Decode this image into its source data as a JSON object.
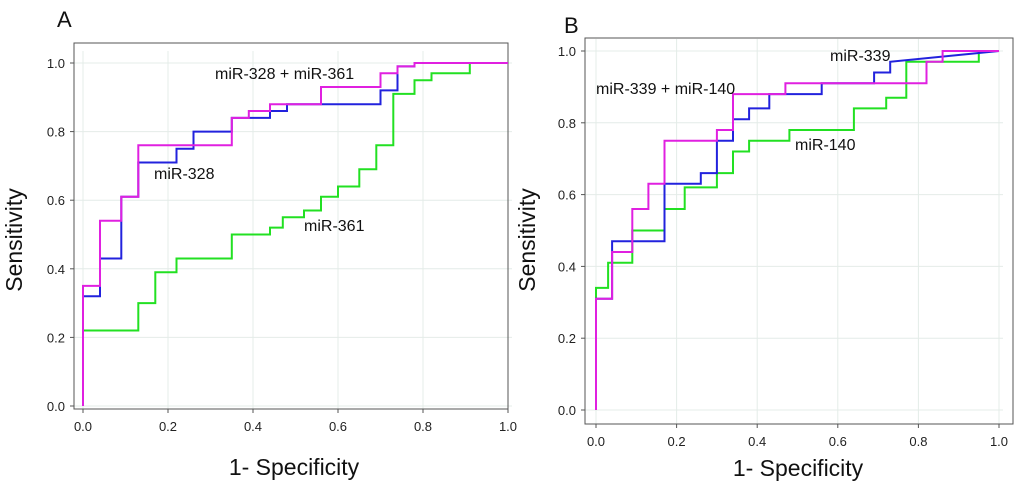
{
  "chart_data": [
    {
      "type": "line",
      "panel_label": "A",
      "xlabel": "1- Specificity",
      "ylabel": "Sensitivity",
      "xlim": [
        0,
        1
      ],
      "ylim": [
        0,
        1
      ],
      "grid": true,
      "x_ticks": [
        "0.0",
        "0.2",
        "0.4",
        "0.6",
        "0.8",
        "1.0"
      ],
      "y_ticks": [
        "0.0",
        "0.2",
        "0.4",
        "0.6",
        "0.8",
        "1.0"
      ],
      "series": [
        {
          "name": "miR-361",
          "color": "#22e022",
          "x": [
            0,
            0,
            0.13,
            0.13,
            0.17,
            0.17,
            0.22,
            0.22,
            0.35,
            0.35,
            0.44,
            0.44,
            0.47,
            0.47,
            0.52,
            0.52,
            0.56,
            0.56,
            0.6,
            0.6,
            0.65,
            0.65,
            0.69,
            0.69,
            0.73,
            0.73,
            0.78,
            0.78,
            0.82,
            0.82,
            0.91,
            0.91,
            1.0
          ],
          "y": [
            0,
            0.22,
            0.22,
            0.3,
            0.3,
            0.39,
            0.39,
            0.43,
            0.43,
            0.5,
            0.5,
            0.52,
            0.52,
            0.55,
            0.55,
            0.57,
            0.57,
            0.61,
            0.61,
            0.64,
            0.64,
            0.69,
            0.69,
            0.76,
            0.76,
            0.91,
            0.91,
            0.95,
            0.95,
            0.97,
            0.97,
            1.0,
            1.0
          ]
        },
        {
          "name": "miR-328",
          "color": "#2222dd",
          "x": [
            0,
            0,
            0.04,
            0.04,
            0.09,
            0.09,
            0.13,
            0.13,
            0.22,
            0.22,
            0.26,
            0.26,
            0.35,
            0.35,
            0.44,
            0.44,
            0.48,
            0.48,
            0.7,
            0.7,
            0.74,
            0.74,
            0.78,
            0.78,
            1.0
          ],
          "y": [
            0,
            0.32,
            0.32,
            0.43,
            0.43,
            0.61,
            0.61,
            0.71,
            0.71,
            0.75,
            0.75,
            0.8,
            0.8,
            0.84,
            0.84,
            0.86,
            0.86,
            0.88,
            0.88,
            0.92,
            0.92,
            0.99,
            0.99,
            1.0,
            1.0
          ]
        },
        {
          "name": "miR-328 + miR-361",
          "color": "#e020e0",
          "x": [
            0,
            0,
            0.04,
            0.04,
            0.09,
            0.09,
            0.13,
            0.13,
            0.35,
            0.35,
            0.39,
            0.39,
            0.44,
            0.44,
            0.56,
            0.56,
            0.7,
            0.7,
            0.74,
            0.74,
            0.78,
            0.78,
            1.0
          ],
          "y": [
            0,
            0.35,
            0.35,
            0.54,
            0.54,
            0.61,
            0.61,
            0.76,
            0.76,
            0.84,
            0.84,
            0.86,
            0.86,
            0.88,
            0.88,
            0.93,
            0.93,
            0.97,
            0.97,
            0.99,
            0.99,
            1.0,
            1.0
          ]
        }
      ],
      "annotations": [
        "miR-328 + miR-361",
        "miR-328",
        "miR-361"
      ]
    },
    {
      "type": "line",
      "panel_label": "B",
      "xlabel": "1- Specificity",
      "ylabel": "Sensitivity",
      "xlim": [
        0,
        1
      ],
      "ylim": [
        0,
        1
      ],
      "grid": true,
      "x_ticks": [
        "0.0",
        "0.2",
        "0.4",
        "0.6",
        "0.8",
        "1.0"
      ],
      "y_ticks": [
        "0.0",
        "0.2",
        "0.4",
        "0.6",
        "0.8",
        "1.0"
      ],
      "series": [
        {
          "name": "miR-140",
          "color": "#22e022",
          "x": [
            0,
            0,
            0.03,
            0.03,
            0.09,
            0.09,
            0.17,
            0.17,
            0.22,
            0.22,
            0.3,
            0.3,
            0.34,
            0.34,
            0.38,
            0.38,
            0.48,
            0.48,
            0.64,
            0.64,
            0.72,
            0.72,
            0.77,
            0.77,
            0.95,
            0.95,
            1.0
          ],
          "y": [
            0,
            0.34,
            0.34,
            0.41,
            0.41,
            0.5,
            0.5,
            0.56,
            0.56,
            0.62,
            0.62,
            0.66,
            0.66,
            0.72,
            0.72,
            0.75,
            0.75,
            0.78,
            0.78,
            0.84,
            0.84,
            0.87,
            0.87,
            0.97,
            0.97,
            1.0,
            1.0
          ]
        },
        {
          "name": "miR-339",
          "color": "#2222dd",
          "x": [
            0,
            0,
            0.04,
            0.04,
            0.17,
            0.17,
            0.26,
            0.26,
            0.3,
            0.3,
            0.34,
            0.34,
            0.38,
            0.38,
            0.43,
            0.43,
            0.56,
            0.56,
            0.69,
            0.69,
            0.73,
            0.73,
            1.0
          ],
          "y": [
            0,
            0.31,
            0.31,
            0.47,
            0.47,
            0.63,
            0.63,
            0.66,
            0.66,
            0.75,
            0.75,
            0.81,
            0.81,
            0.84,
            0.84,
            0.88,
            0.88,
            0.91,
            0.91,
            0.94,
            0.94,
            0.97,
            1.0
          ]
        },
        {
          "name": "miR-339 + miR-140",
          "color": "#e020e0",
          "x": [
            0,
            0,
            0.04,
            0.04,
            0.09,
            0.09,
            0.13,
            0.13,
            0.17,
            0.17,
            0.3,
            0.3,
            0.34,
            0.34,
            0.47,
            0.47,
            0.82,
            0.82,
            0.86,
            0.86,
            1.0
          ],
          "y": [
            0,
            0.31,
            0.31,
            0.44,
            0.44,
            0.56,
            0.56,
            0.63,
            0.63,
            0.75,
            0.75,
            0.78,
            0.78,
            0.88,
            0.88,
            0.91,
            0.91,
            0.97,
            0.97,
            1.0,
            1.0
          ]
        }
      ],
      "annotations": [
        "miR-339 + miR-140",
        "miR-339",
        "miR-140"
      ]
    }
  ]
}
